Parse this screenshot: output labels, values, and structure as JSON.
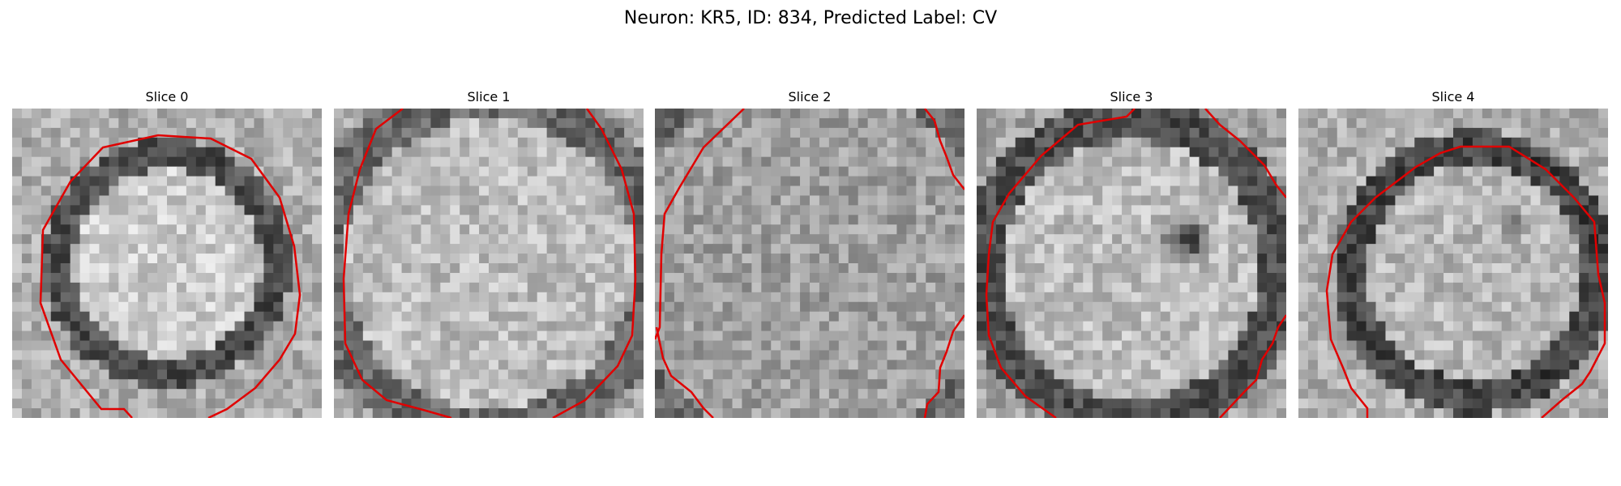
{
  "figure": {
    "title": "Neuron: KR5, ID: 834, Predicted Label: CV"
  },
  "colors": {
    "contour": "#e00000",
    "background": "#ffffff"
  },
  "slices": [
    {
      "title": "Slice 0"
    },
    {
      "title": "Slice 1"
    },
    {
      "title": "Slice 2"
    },
    {
      "title": "Slice 3"
    },
    {
      "title": "Slice 4"
    }
  ]
}
